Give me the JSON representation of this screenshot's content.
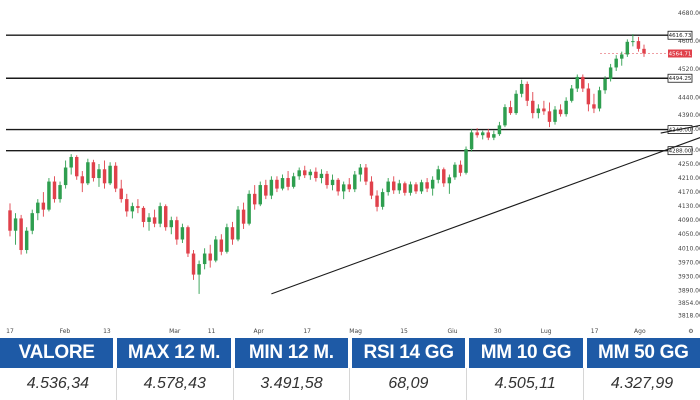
{
  "colors": {
    "up": "#2e9e4f",
    "down": "#e0414b",
    "line": "#1a1a1a",
    "header_bg": "#1e5aa6",
    "current_tag": "#e0414b"
  },
  "chart_data": {
    "type": "candlestick",
    "y_ticks": [
      "4680.00",
      "4600.00",
      "4520.00",
      "4440.00",
      "4390.00",
      "4350.00",
      "4290.00",
      "4250.00",
      "4210.00",
      "4170.00",
      "4130.00",
      "4090.00",
      "4050.00",
      "4010.00",
      "3970.00",
      "3930.00",
      "3890.00",
      "3854.00",
      "3818.00"
    ],
    "x_ticks": [
      "17",
      "Feb",
      "13",
      "Mar",
      "11",
      "Apr",
      "17",
      "Mag",
      "15",
      "Giu",
      "30",
      "Lug",
      "17",
      "Ago"
    ],
    "ylim": [
      3800,
      4700
    ],
    "horizontal_levels": [
      {
        "label": "4616.73",
        "value": 4616.73
      },
      {
        "label": "4494.25",
        "value": 4494.25
      },
      {
        "label": "4348.00",
        "value": 4348.0
      },
      {
        "label": "4288.00",
        "value": 4288.0
      }
    ],
    "current_price": {
      "label": "4564.71",
      "value": 4564.71
    },
    "trendlines": [
      {
        "x1": 47,
        "y1": 3880,
        "x2": 154,
        "y2": 4498
      },
      {
        "x1": 117,
        "y1": 4338,
        "x2": 154,
        "y2": 4452
      }
    ],
    "candles": [
      {
        "i": 0,
        "o": 4118,
        "h": 4138,
        "l": 4044,
        "c": 4060
      },
      {
        "i": 1,
        "o": 4060,
        "h": 4110,
        "l": 4020,
        "c": 4095
      },
      {
        "i": 2,
        "o": 4095,
        "h": 4105,
        "l": 3992,
        "c": 4005
      },
      {
        "i": 3,
        "o": 4005,
        "h": 4070,
        "l": 3995,
        "c": 4060
      },
      {
        "i": 4,
        "o": 4060,
        "h": 4120,
        "l": 4050,
        "c": 4110
      },
      {
        "i": 5,
        "o": 4110,
        "h": 4150,
        "l": 4090,
        "c": 4140
      },
      {
        "i": 6,
        "o": 4140,
        "h": 4170,
        "l": 4100,
        "c": 4120
      },
      {
        "i": 7,
        "o": 4120,
        "h": 4210,
        "l": 4115,
        "c": 4200
      },
      {
        "i": 8,
        "o": 4200,
        "h": 4215,
        "l": 4140,
        "c": 4150
      },
      {
        "i": 9,
        "o": 4150,
        "h": 4200,
        "l": 4140,
        "c": 4190
      },
      {
        "i": 10,
        "o": 4190,
        "h": 4260,
        "l": 4180,
        "c": 4240
      },
      {
        "i": 11,
        "o": 4240,
        "h": 4278,
        "l": 4220,
        "c": 4270
      },
      {
        "i": 12,
        "o": 4270,
        "h": 4275,
        "l": 4205,
        "c": 4215
      },
      {
        "i": 13,
        "o": 4215,
        "h": 4230,
        "l": 4170,
        "c": 4195
      },
      {
        "i": 14,
        "o": 4195,
        "h": 4265,
        "l": 4190,
        "c": 4255
      },
      {
        "i": 15,
        "o": 4255,
        "h": 4262,
        "l": 4200,
        "c": 4210
      },
      {
        "i": 16,
        "o": 4210,
        "h": 4250,
        "l": 4185,
        "c": 4235
      },
      {
        "i": 17,
        "o": 4235,
        "h": 4260,
        "l": 4180,
        "c": 4195
      },
      {
        "i": 18,
        "o": 4195,
        "h": 4255,
        "l": 4190,
        "c": 4245
      },
      {
        "i": 19,
        "o": 4245,
        "h": 4255,
        "l": 4170,
        "c": 4180
      },
      {
        "i": 20,
        "o": 4180,
        "h": 4205,
        "l": 4140,
        "c": 4150
      },
      {
        "i": 21,
        "o": 4150,
        "h": 4165,
        "l": 4100,
        "c": 4115
      },
      {
        "i": 22,
        "o": 4115,
        "h": 4140,
        "l": 4095,
        "c": 4130
      },
      {
        "i": 23,
        "o": 4130,
        "h": 4150,
        "l": 4110,
        "c": 4125
      },
      {
        "i": 24,
        "o": 4125,
        "h": 4130,
        "l": 4070,
        "c": 4085
      },
      {
        "i": 25,
        "o": 4085,
        "h": 4110,
        "l": 4060,
        "c": 4098
      },
      {
        "i": 26,
        "o": 4098,
        "h": 4120,
        "l": 4070,
        "c": 4080
      },
      {
        "i": 27,
        "o": 4080,
        "h": 4140,
        "l": 4070,
        "c": 4130
      },
      {
        "i": 28,
        "o": 4130,
        "h": 4135,
        "l": 4060,
        "c": 4070
      },
      {
        "i": 29,
        "o": 4070,
        "h": 4100,
        "l": 4050,
        "c": 4090
      },
      {
        "i": 30,
        "o": 4090,
        "h": 4100,
        "l": 4020,
        "c": 4035
      },
      {
        "i": 31,
        "o": 4035,
        "h": 4080,
        "l": 4025,
        "c": 4070
      },
      {
        "i": 32,
        "o": 4070,
        "h": 4075,
        "l": 3985,
        "c": 3995
      },
      {
        "i": 33,
        "o": 3995,
        "h": 4005,
        "l": 3920,
        "c": 3935
      },
      {
        "i": 34,
        "o": 3935,
        "h": 3975,
        "l": 3880,
        "c": 3965
      },
      {
        "i": 35,
        "o": 3965,
        "h": 4010,
        "l": 3950,
        "c": 3995
      },
      {
        "i": 36,
        "o": 3995,
        "h": 4020,
        "l": 3955,
        "c": 3975
      },
      {
        "i": 37,
        "o": 3975,
        "h": 4045,
        "l": 3970,
        "c": 4035
      },
      {
        "i": 38,
        "o": 4035,
        "h": 4050,
        "l": 3990,
        "c": 4000
      },
      {
        "i": 39,
        "o": 4000,
        "h": 4080,
        "l": 3995,
        "c": 4070
      },
      {
        "i": 40,
        "o": 4070,
        "h": 4085,
        "l": 4020,
        "c": 4035
      },
      {
        "i": 41,
        "o": 4035,
        "h": 4130,
        "l": 4030,
        "c": 4120
      },
      {
        "i": 42,
        "o": 4120,
        "h": 4140,
        "l": 4065,
        "c": 4080
      },
      {
        "i": 43,
        "o": 4080,
        "h": 4175,
        "l": 4075,
        "c": 4165
      },
      {
        "i": 44,
        "o": 4165,
        "h": 4190,
        "l": 4120,
        "c": 4135
      },
      {
        "i": 45,
        "o": 4135,
        "h": 4200,
        "l": 4130,
        "c": 4190
      },
      {
        "i": 46,
        "o": 4190,
        "h": 4205,
        "l": 4150,
        "c": 4160
      },
      {
        "i": 47,
        "o": 4160,
        "h": 4215,
        "l": 4150,
        "c": 4205
      },
      {
        "i": 48,
        "o": 4205,
        "h": 4215,
        "l": 4170,
        "c": 4180
      },
      {
        "i": 49,
        "o": 4180,
        "h": 4220,
        "l": 4175,
        "c": 4210
      },
      {
        "i": 50,
        "o": 4210,
        "h": 4230,
        "l": 4175,
        "c": 4185
      },
      {
        "i": 51,
        "o": 4185,
        "h": 4225,
        "l": 4180,
        "c": 4215
      },
      {
        "i": 52,
        "o": 4215,
        "h": 4240,
        "l": 4205,
        "c": 4232
      },
      {
        "i": 53,
        "o": 4232,
        "h": 4245,
        "l": 4210,
        "c": 4218
      },
      {
        "i": 54,
        "o": 4218,
        "h": 4235,
        "l": 4205,
        "c": 4228
      },
      {
        "i": 55,
        "o": 4228,
        "h": 4240,
        "l": 4200,
        "c": 4210
      },
      {
        "i": 56,
        "o": 4210,
        "h": 4235,
        "l": 4195,
        "c": 4222
      },
      {
        "i": 57,
        "o": 4222,
        "h": 4230,
        "l": 4180,
        "c": 4190
      },
      {
        "i": 58,
        "o": 4190,
        "h": 4220,
        "l": 4175,
        "c": 4205
      },
      {
        "i": 59,
        "o": 4205,
        "h": 4210,
        "l": 4160,
        "c": 4172
      },
      {
        "i": 60,
        "o": 4172,
        "h": 4200,
        "l": 4150,
        "c": 4192
      },
      {
        "i": 61,
        "o": 4192,
        "h": 4210,
        "l": 4170,
        "c": 4178
      },
      {
        "i": 62,
        "o": 4178,
        "h": 4230,
        "l": 4170,
        "c": 4220
      },
      {
        "i": 63,
        "o": 4220,
        "h": 4250,
        "l": 4200,
        "c": 4240
      },
      {
        "i": 64,
        "o": 4240,
        "h": 4250,
        "l": 4190,
        "c": 4200
      },
      {
        "i": 65,
        "o": 4200,
        "h": 4215,
        "l": 4150,
        "c": 4160
      },
      {
        "i": 66,
        "o": 4160,
        "h": 4175,
        "l": 4115,
        "c": 4128
      },
      {
        "i": 67,
        "o": 4128,
        "h": 4180,
        "l": 4120,
        "c": 4170
      },
      {
        "i": 68,
        "o": 4170,
        "h": 4210,
        "l": 4160,
        "c": 4200
      },
      {
        "i": 69,
        "o": 4200,
        "h": 4215,
        "l": 4165,
        "c": 4175
      },
      {
        "i": 70,
        "o": 4175,
        "h": 4205,
        "l": 4165,
        "c": 4195
      },
      {
        "i": 71,
        "o": 4195,
        "h": 4200,
        "l": 4160,
        "c": 4168
      },
      {
        "i": 72,
        "o": 4168,
        "h": 4200,
        "l": 4160,
        "c": 4192
      },
      {
        "i": 73,
        "o": 4192,
        "h": 4198,
        "l": 4165,
        "c": 4172
      },
      {
        "i": 74,
        "o": 4172,
        "h": 4205,
        "l": 4165,
        "c": 4198
      },
      {
        "i": 75,
        "o": 4198,
        "h": 4210,
        "l": 4170,
        "c": 4180
      },
      {
        "i": 76,
        "o": 4180,
        "h": 4215,
        "l": 4160,
        "c": 4205
      },
      {
        "i": 77,
        "o": 4205,
        "h": 4245,
        "l": 4195,
        "c": 4235
      },
      {
        "i": 78,
        "o": 4235,
        "h": 4240,
        "l": 4185,
        "c": 4195
      },
      {
        "i": 79,
        "o": 4195,
        "h": 4220,
        "l": 4165,
        "c": 4212
      },
      {
        "i": 80,
        "o": 4212,
        "h": 4255,
        "l": 4205,
        "c": 4248
      },
      {
        "i": 81,
        "o": 4248,
        "h": 4260,
        "l": 4215,
        "c": 4225
      },
      {
        "i": 82,
        "o": 4225,
        "h": 4300,
        "l": 4220,
        "c": 4292
      },
      {
        "i": 83,
        "o": 4292,
        "h": 4350,
        "l": 4285,
        "c": 4340
      },
      {
        "i": 84,
        "o": 4340,
        "h": 4352,
        "l": 4325,
        "c": 4332
      },
      {
        "i": 85,
        "o": 4332,
        "h": 4345,
        "l": 4320,
        "c": 4340
      },
      {
        "i": 86,
        "o": 4340,
        "h": 4350,
        "l": 4318,
        "c": 4325
      },
      {
        "i": 87,
        "o": 4325,
        "h": 4345,
        "l": 4318,
        "c": 4335
      },
      {
        "i": 88,
        "o": 4335,
        "h": 4370,
        "l": 4330,
        "c": 4360
      },
      {
        "i": 89,
        "o": 4360,
        "h": 4420,
        "l": 4355,
        "c": 4412
      },
      {
        "i": 90,
        "o": 4412,
        "h": 4430,
        "l": 4390,
        "c": 4395
      },
      {
        "i": 91,
        "o": 4395,
        "h": 4460,
        "l": 4390,
        "c": 4450
      },
      {
        "i": 92,
        "o": 4450,
        "h": 4490,
        "l": 4440,
        "c": 4478
      },
      {
        "i": 93,
        "o": 4478,
        "h": 4485,
        "l": 4415,
        "c": 4430
      },
      {
        "i": 94,
        "o": 4430,
        "h": 4455,
        "l": 4380,
        "c": 4395
      },
      {
        "i": 95,
        "o": 4395,
        "h": 4420,
        "l": 4380,
        "c": 4408
      },
      {
        "i": 96,
        "o": 4408,
        "h": 4430,
        "l": 4390,
        "c": 4400
      },
      {
        "i": 97,
        "o": 4400,
        "h": 4425,
        "l": 4355,
        "c": 4370
      },
      {
        "i": 98,
        "o": 4370,
        "h": 4415,
        "l": 4362,
        "c": 4405
      },
      {
        "i": 99,
        "o": 4405,
        "h": 4420,
        "l": 4385,
        "c": 4392
      },
      {
        "i": 100,
        "o": 4392,
        "h": 4440,
        "l": 4385,
        "c": 4430
      },
      {
        "i": 101,
        "o": 4430,
        "h": 4475,
        "l": 4425,
        "c": 4465
      },
      {
        "i": 102,
        "o": 4465,
        "h": 4505,
        "l": 4455,
        "c": 4498
      },
      {
        "i": 103,
        "o": 4498,
        "h": 4505,
        "l": 4455,
        "c": 4465
      },
      {
        "i": 104,
        "o": 4465,
        "h": 4480,
        "l": 4400,
        "c": 4420
      },
      {
        "i": 105,
        "o": 4420,
        "h": 4450,
        "l": 4395,
        "c": 4408
      },
      {
        "i": 106,
        "o": 4408,
        "h": 4470,
        "l": 4400,
        "c": 4460
      },
      {
        "i": 107,
        "o": 4460,
        "h": 4500,
        "l": 4450,
        "c": 4492
      },
      {
        "i": 108,
        "o": 4492,
        "h": 4535,
        "l": 4485,
        "c": 4525
      },
      {
        "i": 109,
        "o": 4525,
        "h": 4560,
        "l": 4515,
        "c": 4550
      },
      {
        "i": 110,
        "o": 4550,
        "h": 4570,
        "l": 4530,
        "c": 4562
      },
      {
        "i": 111,
        "o": 4562,
        "h": 4605,
        "l": 4555,
        "c": 4598
      },
      {
        "i": 112,
        "o": 4598,
        "h": 4620,
        "l": 4585,
        "c": 4600
      },
      {
        "i": 113,
        "o": 4600,
        "h": 4612,
        "l": 4570,
        "c": 4578
      },
      {
        "i": 114,
        "o": 4578,
        "h": 4590,
        "l": 4555,
        "c": 4565
      }
    ]
  },
  "stats": {
    "headers": [
      "VALORE",
      "MAX 12 M.",
      "MIN 12 M.",
      "RSI 14 GG",
      "MM 10 GG",
      "MM 50 GG"
    ],
    "values": [
      "4.536,34",
      "4.578,43",
      "3.491,58",
      "68,09",
      "4.505,11",
      "4.327,99"
    ]
  }
}
